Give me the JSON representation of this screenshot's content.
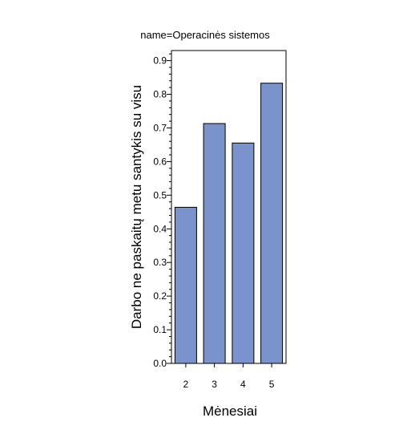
{
  "chart_data": {
    "type": "bar",
    "title": "name=Operacinės sistemos",
    "xlabel": "Mėnesiai",
    "ylabel": "Darbo ne paskaitų metu santykis su visu",
    "categories": [
      "2",
      "3",
      "4",
      "5"
    ],
    "values": [
      0.464,
      0.713,
      0.655,
      0.833
    ],
    "ylim": [
      0,
      0.93
    ],
    "yticks": [
      "0.0",
      "0.1",
      "0.2",
      "0.3",
      "0.4",
      "0.5",
      "0.6",
      "0.7",
      "0.8",
      "0.9"
    ],
    "grid": false,
    "colors": {
      "bar_fill": "#7b93cc",
      "bar_stroke": "#000000",
      "frame": "#000000"
    }
  }
}
